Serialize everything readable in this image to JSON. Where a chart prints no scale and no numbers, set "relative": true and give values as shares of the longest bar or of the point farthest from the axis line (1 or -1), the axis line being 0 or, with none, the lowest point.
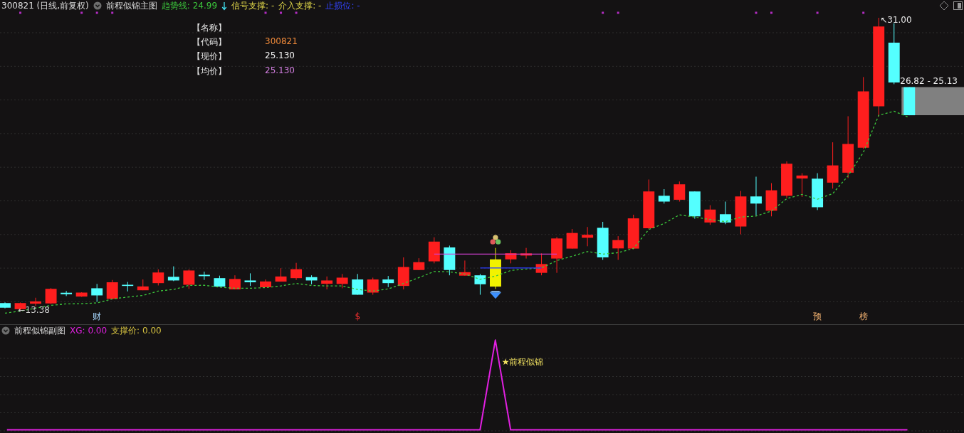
{
  "chart_data": [
    {
      "type": "candlestick",
      "title": "300821 (日线,前复权)",
      "subtitle": "前程似锦主图",
      "categories": [
        null,
        null,
        null,
        null,
        null,
        null,
        null,
        null,
        null,
        null,
        null,
        null,
        null,
        null,
        null,
        null,
        null,
        null,
        null,
        null,
        null,
        null,
        null,
        null,
        null,
        null,
        null,
        null,
        null,
        null,
        null,
        null,
        null,
        null,
        null,
        null,
        null,
        null,
        null,
        null,
        null,
        null,
        null,
        null,
        null,
        null,
        null,
        null,
        null,
        null,
        null,
        null,
        null,
        null,
        null,
        null,
        null,
        null,
        null,
        null
      ],
      "ohlc": [
        [
          13.82,
          13.86,
          13.5,
          13.54
        ],
        [
          13.45,
          13.85,
          13.38,
          13.82
        ],
        [
          13.78,
          14.14,
          13.64,
          13.92
        ],
        [
          13.8,
          14.72,
          13.76,
          14.67
        ],
        [
          14.44,
          14.55,
          14.24,
          14.35
        ],
        [
          14.21,
          14.47,
          14.19,
          14.45
        ],
        [
          14.71,
          14.97,
          13.9,
          14.28
        ],
        [
          14.07,
          15.21,
          14.04,
          15.07
        ],
        [
          14.92,
          15.09,
          14.52,
          14.85
        ],
        [
          14.59,
          15.24,
          14.59,
          14.82
        ],
        [
          15.02,
          15.85,
          14.88,
          15.66
        ],
        [
          15.4,
          16.03,
          15.14,
          15.18
        ],
        [
          14.92,
          15.85,
          14.67,
          15.78
        ],
        [
          15.52,
          15.71,
          15.21,
          15.44
        ],
        [
          15.32,
          15.47,
          14.81,
          14.81
        ],
        [
          14.64,
          15.49,
          14.64,
          15.27
        ],
        [
          15.18,
          15.61,
          14.85,
          15.07
        ],
        [
          14.77,
          15.24,
          14.77,
          15.12
        ],
        [
          15.11,
          15.92,
          15.11,
          15.42
        ],
        [
          15.32,
          16.24,
          15.21,
          15.86
        ],
        [
          15.38,
          15.49,
          14.95,
          15.18
        ],
        [
          14.98,
          15.42,
          14.64,
          15.18
        ],
        [
          14.97,
          15.57,
          14.71,
          15.35
        ],
        [
          15.24,
          15.57,
          14.32,
          14.32
        ],
        [
          14.45,
          15.35,
          14.32,
          15.24
        ],
        [
          15.24,
          15.45,
          14.78,
          15.02
        ],
        [
          14.85,
          16.57,
          14.64,
          15.99
        ],
        [
          15.81,
          16.52,
          15.81,
          16.28
        ],
        [
          16.33,
          17.78,
          16.21,
          17.52
        ],
        [
          17.17,
          17.28,
          15.49,
          15.81
        ],
        [
          15.47,
          16.38,
          15.47,
          15.68
        ],
        [
          15.49,
          15.57,
          14.32,
          14.95
        ],
        [
          14.81,
          17.14,
          14.67,
          16.45
        ],
        [
          16.45,
          17.0,
          16.21,
          16.82
        ],
        [
          16.68,
          17.14,
          16.5,
          16.81
        ],
        [
          15.64,
          16.81,
          15.49,
          16.17
        ],
        [
          16.5,
          17.8,
          15.64,
          17.71
        ],
        [
          17.1,
          18.28,
          17.1,
          18.04
        ],
        [
          17.75,
          18.4,
          17.24,
          17.93
        ],
        [
          18.35,
          18.71,
          16.42,
          16.57
        ],
        [
          17.11,
          17.85,
          16.42,
          17.61
        ],
        [
          17.1,
          19.14,
          17.05,
          18.92
        ],
        [
          18.32,
          21.26,
          18.28,
          20.54
        ],
        [
          20.28,
          20.68,
          19.81,
          19.93
        ],
        [
          20.04,
          21.14,
          19.93,
          20.97
        ],
        [
          20.54,
          20.54,
          18.9,
          19.04
        ],
        [
          18.67,
          19.71,
          18.53,
          19.45
        ],
        [
          19.17,
          19.93,
          18.57,
          18.67
        ],
        [
          18.43,
          20.57,
          17.96,
          20.24
        ],
        [
          20.24,
          21.43,
          19.1,
          19.81
        ],
        [
          19.38,
          21.04,
          19.04,
          20.61
        ],
        [
          20.28,
          22.35,
          20.14,
          22.21
        ],
        [
          21.32,
          21.64,
          20.21,
          21.5
        ],
        [
          21.31,
          21.64,
          19.42,
          19.59
        ],
        [
          21.07,
          23.5,
          20.71,
          22.11
        ],
        [
          21.67,
          25.07,
          21.35,
          23.4
        ],
        [
          23.17,
          27.43,
          23.1,
          26.57
        ],
        [
          25.67,
          31.0,
          25.07,
          30.47
        ],
        [
          29.5,
          30.67,
          27.0,
          27.1
        ],
        [
          26.82,
          26.82,
          25.13,
          25.13
        ]
      ],
      "colors": [
        "#54ffff",
        "#ff1e1e",
        "#ff1e1e",
        "#ff1e1e",
        "#54ffff",
        "#ff1e1e",
        "#54ffff",
        "#ff1e1e",
        "#54ffff",
        "#ff1e1e",
        "#ff1e1e",
        "#54ffff",
        "#ff1e1e",
        "#54ffff",
        "#54ffff",
        "#ff1e1e",
        "#54ffff",
        "#ff1e1e",
        "#ff1e1e",
        "#ff1e1e",
        "#54ffff",
        "#ff1e1e",
        "#ff1e1e",
        "#54ffff",
        "#ff1e1e",
        "#54ffff",
        "#ff1e1e",
        "#ff1e1e",
        "#ff1e1e",
        "#54ffff",
        "#ff1e1e",
        "#54ffff",
        "#f2f200",
        "#ff1e1e",
        "#ff1e1e",
        "#ff1e1e",
        "#ff1e1e",
        "#ff1e1e",
        "#ff1e1e",
        "#54ffff",
        "#ff1e1e",
        "#ff1e1e",
        "#ff1e1e",
        "#54ffff",
        "#ff1e1e",
        "#54ffff",
        "#ff1e1e",
        "#54ffff",
        "#ff1e1e",
        "#54ffff",
        "#ff1e1e",
        "#ff1e1e",
        "#ff1e1e",
        "#54ffff",
        "#ff1e1e",
        "#ff1e1e",
        "#ff1e1e",
        "#ff1e1e",
        "#54ffff",
        "#54ffff"
      ],
      "series": [
        {
          "name": "趋势线: 24.99",
          "type": "line",
          "color": "#3cc83c",
          "line_style": "dashed",
          "values": [
            13.21,
            13.34,
            13.51,
            13.68,
            13.77,
            13.78,
            13.83,
            14.07,
            14.18,
            14.28,
            14.54,
            14.64,
            14.88,
            14.89,
            14.78,
            14.71,
            14.71,
            14.75,
            14.85,
            15.0,
            14.88,
            14.85,
            14.85,
            14.64,
            14.54,
            14.67,
            15.0,
            15.35,
            15.72,
            15.7,
            15.57,
            15.25,
            15.44,
            15.78,
            15.87,
            15.93,
            16.38,
            16.64,
            16.92,
            16.77,
            16.85,
            17.11,
            18.25,
            18.61,
            19.13,
            19.0,
            18.85,
            18.72,
            19.0,
            19.06,
            19.36,
            20.11,
            20.36,
            20.07,
            20.41,
            21.48,
            22.9,
            25.13,
            25.37,
            24.99
          ]
        },
        {
          "type": "line",
          "color": "#d040d0",
          "values": [
            null,
            null,
            null,
            null,
            null,
            null,
            null,
            null,
            null,
            null,
            null,
            null,
            null,
            null,
            null,
            null,
            null,
            null,
            null,
            null,
            null,
            null,
            null,
            null,
            null,
            null,
            null,
            null,
            16.77,
            16.77,
            16.77,
            16.77,
            16.77,
            16.77,
            16.77,
            16.77,
            16.77,
            null,
            null,
            null,
            null,
            null,
            null,
            null,
            null,
            null,
            null,
            null,
            null,
            null,
            null,
            null,
            null,
            null,
            null,
            null,
            null,
            null,
            null,
            null
          ]
        },
        {
          "type": "line",
          "color": "#2a3cff",
          "values": [
            null,
            null,
            null,
            null,
            null,
            null,
            null,
            null,
            null,
            null,
            null,
            null,
            null,
            null,
            null,
            null,
            null,
            null,
            null,
            null,
            null,
            null,
            null,
            null,
            null,
            null,
            null,
            null,
            null,
            null,
            null,
            15.93,
            15.93,
            15.93,
            15.93,
            15.93,
            null,
            null,
            null,
            null,
            null,
            null,
            null,
            null,
            null,
            null,
            null,
            null,
            null,
            null,
            null,
            null,
            null,
            null,
            null,
            null,
            null,
            null,
            null,
            null
          ]
        }
      ],
      "annotations": [
        "信号支撑: -",
        "介入支撑: -",
        "止损位: -",
        "【名称】",
        "【代码】",
        "300821",
        "【现价】",
        "25.130",
        "【均价】",
        "25.130",
        "↖31.00",
        "←13.38",
        "26.82 - 25.13",
        "财",
        "$",
        "预",
        "榜"
      ],
      "grid": true,
      "tick_labels": false
    },
    {
      "type": "line",
      "title": "前程似锦副图",
      "relative": true,
      "categories": [
        null,
        null,
        null,
        null,
        null,
        null,
        null,
        null,
        null,
        null,
        null,
        null,
        null,
        null,
        null,
        null,
        null,
        null,
        null,
        null,
        null,
        null,
        null,
        null,
        null,
        null,
        null,
        null,
        null,
        null,
        null,
        null,
        null,
        null,
        null,
        null,
        null,
        null,
        null,
        null,
        null,
        null,
        null,
        null,
        null,
        null,
        null,
        null,
        null,
        null,
        null,
        null,
        null,
        null,
        null,
        null,
        null,
        null,
        null,
        null
      ],
      "series": [
        {
          "name": "XG: 0.00",
          "color": "#e020e0",
          "values": [
            0,
            0,
            0,
            0,
            0,
            0,
            0,
            0,
            0,
            0,
            0,
            0,
            0,
            0,
            0,
            0,
            0,
            0,
            0,
            0,
            0,
            0,
            0,
            0,
            0,
            0,
            0,
            0,
            0,
            0,
            0,
            0,
            1,
            0,
            0,
            0,
            0,
            0,
            0,
            0,
            0,
            0,
            0,
            0,
            0,
            0,
            0,
            0,
            0,
            0,
            0,
            0,
            0,
            0,
            0,
            0,
            0,
            0,
            0,
            0
          ]
        }
      ],
      "annotations": [
        "支撑价: 0.00",
        "★前程似锦"
      ],
      "grid": true,
      "tick_labels": false
    }
  ]
}
